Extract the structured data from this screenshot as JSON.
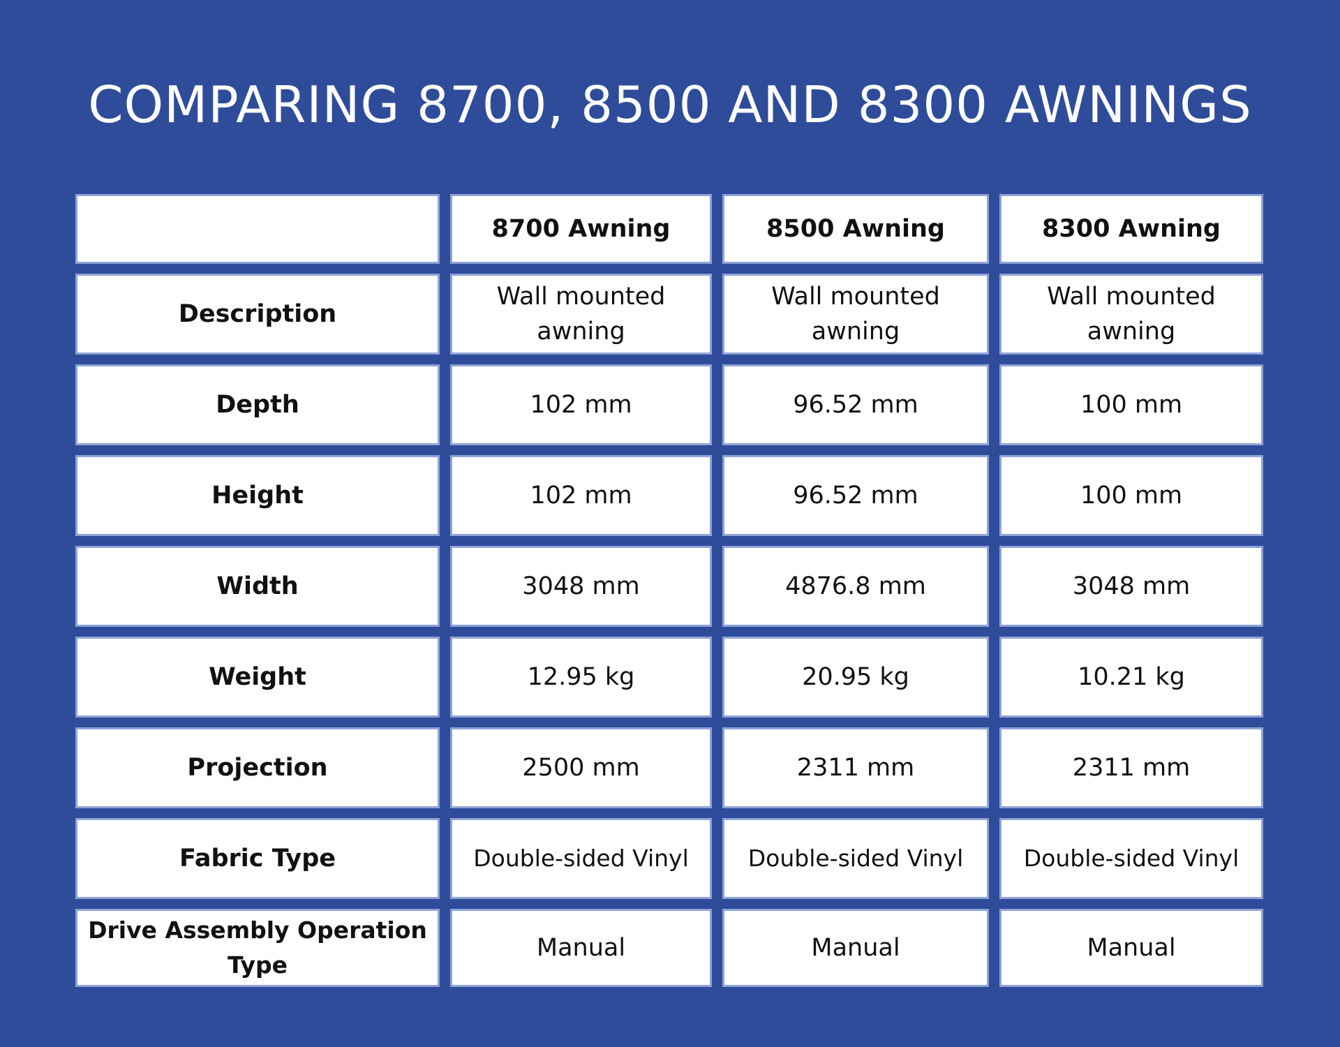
{
  "title": "COMPARING 8700, 8500 AND 8300 AWNINGS",
  "table": {
    "columns": [
      "",
      "8700 Awning",
      "8500 Awning",
      "8300 Awning"
    ],
    "rows": [
      {
        "label": "Description",
        "values": [
          "Wall mounted awning",
          "Wall mounted awning",
          "Wall mounted awning"
        ]
      },
      {
        "label": "Depth",
        "values": [
          "102 mm",
          "96.52 mm",
          "100 mm"
        ]
      },
      {
        "label": "Height",
        "values": [
          "102 mm",
          "96.52 mm",
          "100 mm"
        ]
      },
      {
        "label": "Width",
        "values": [
          "3048 mm",
          "4876.8 mm",
          "3048 mm"
        ]
      },
      {
        "label": "Weight",
        "values": [
          "12.95 kg",
          "20.95 kg",
          "10.21 kg"
        ]
      },
      {
        "label": "Projection",
        "values": [
          "2500 mm",
          "2311 mm",
          "2311 mm"
        ]
      },
      {
        "label": "Fabric Type",
        "values": [
          "Double-sided Vinyl",
          "Double-sided Vinyl",
          "Double-sided Vinyl"
        ]
      },
      {
        "label": "Drive Assembly Operation Type",
        "values": [
          "Manual",
          "Manual",
          "Manual"
        ]
      }
    ]
  }
}
